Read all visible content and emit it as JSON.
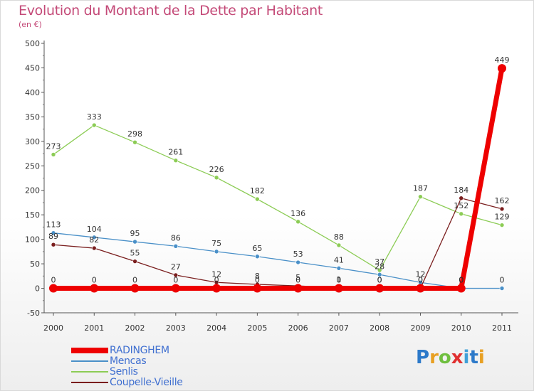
{
  "title": "Evolution du Montant de la Dette par Habitant",
  "unit": "(en €)",
  "brand": {
    "text": "Proxiti",
    "letter_colors": [
      "#2c79c9",
      "#e8a022",
      "#6fbf3f",
      "#e03030",
      "#3fa0d8",
      "#2c79c9",
      "#e8a022"
    ]
  },
  "chart_data": {
    "type": "line",
    "title": "Evolution du Montant de la Dette par Habitant",
    "subtitle": "(en €)",
    "x": [
      "2000",
      "2001",
      "2002",
      "2003",
      "2004",
      "2005",
      "2006",
      "2007",
      "2008",
      "2009",
      "2010",
      "2011"
    ],
    "ylim": [
      -50,
      500
    ],
    "yticks": [
      "-50",
      "0",
      "50",
      "100",
      "150",
      "200",
      "250",
      "300",
      "350",
      "400",
      "450",
      "500"
    ],
    "grid": false,
    "legend_position": "bottom-left",
    "series": [
      {
        "name": "RADINGHEM",
        "color": "#ee0000",
        "values": [
          0,
          0,
          0,
          0,
          0,
          0,
          0,
          0,
          0,
          0,
          0,
          449
        ],
        "labels": [
          "0",
          "0",
          "0",
          "0",
          "0",
          "0",
          "0",
          "0",
          "0",
          "0",
          "0",
          "449"
        ]
      },
      {
        "name": "Mencas",
        "color": "#4a90c8",
        "values": [
          113,
          104,
          95,
          86,
          75,
          65,
          53,
          41,
          28,
          12,
          0,
          0
        ],
        "labels": [
          "113",
          "104",
          "95",
          "86",
          "75",
          "65",
          "53",
          "41",
          "28",
          "12",
          "0",
          "0"
        ]
      },
      {
        "name": "Senlis",
        "color": "#8ccc55",
        "values": [
          273,
          333,
          298,
          261,
          226,
          182,
          136,
          88,
          37,
          187,
          152,
          129
        ],
        "labels": [
          "273",
          "333",
          "298",
          "261",
          "226",
          "182",
          "136",
          "88",
          "37",
          "187",
          "152",
          "129"
        ]
      },
      {
        "name": "Coupelle-Vieille",
        "color": "#7a1e1e",
        "values": [
          89,
          82,
          55,
          27,
          12,
          8,
          5,
          1,
          0,
          0,
          184,
          162
        ],
        "labels": [
          "89",
          "82",
          "55",
          "27",
          "12",
          "8",
          "5",
          "1",
          "0",
          "0",
          "184",
          "162"
        ]
      }
    ]
  }
}
